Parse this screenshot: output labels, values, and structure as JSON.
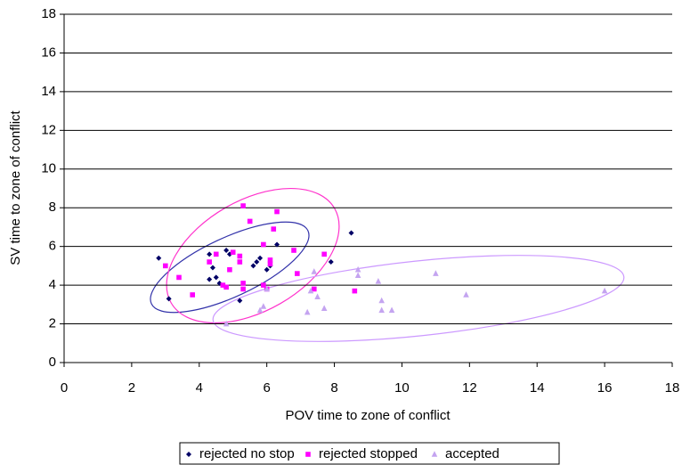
{
  "chart_data": {
    "type": "scatter",
    "x_label": "POV time to zone of conflict",
    "y_label": "SV time to zone of conflict",
    "xlim": [
      0,
      18
    ],
    "xticks": [
      0,
      2,
      4,
      6,
      8,
      10,
      12,
      14,
      16,
      18
    ],
    "ylim": [
      0,
      18
    ],
    "yticks": [
      0,
      2,
      4,
      6,
      8,
      10,
      12,
      14,
      16,
      18
    ],
    "grid": true,
    "legend": "bottom",
    "series": [
      {
        "name": "rejected no stop",
        "color": "#000066",
        "marker": "diamond",
        "x": [
          2.8,
          3.1,
          4.3,
          4.3,
          4.4,
          4.5,
          4.6,
          4.8,
          4.9,
          5.2,
          5.6,
          5.7,
          5.8,
          6.0,
          6.1,
          6.3,
          7.9,
          8.5
        ],
        "y": [
          5.4,
          3.3,
          5.6,
          4.3,
          4.9,
          4.4,
          4.1,
          5.8,
          5.6,
          3.2,
          5.0,
          5.2,
          5.4,
          4.8,
          5.0,
          6.1,
          5.2,
          6.7
        ]
      },
      {
        "name": "rejected stopped",
        "color": "#ff00ff",
        "marker": "square",
        "x": [
          3.0,
          3.4,
          3.8,
          4.3,
          4.5,
          4.7,
          4.8,
          4.9,
          5.0,
          5.2,
          5.2,
          5.3,
          5.3,
          5.3,
          5.5,
          5.9,
          5.9,
          6.0,
          6.1,
          6.1,
          6.2,
          6.3,
          6.8,
          6.9,
          7.4,
          7.7,
          8.6
        ],
        "y": [
          5.0,
          4.4,
          3.5,
          5.2,
          5.6,
          4.0,
          3.9,
          4.8,
          5.7,
          5.5,
          5.2,
          8.1,
          4.1,
          3.8,
          7.3,
          6.1,
          4.0,
          3.8,
          5.3,
          5.1,
          6.9,
          7.8,
          5.8,
          4.6,
          3.8,
          5.6,
          3.7
        ]
      },
      {
        "name": "accepted",
        "color": "#c4a4f0",
        "marker": "triangle",
        "x": [
          4.8,
          5.8,
          5.9,
          6.0,
          7.2,
          7.3,
          7.4,
          7.5,
          7.7,
          8.7,
          8.7,
          9.3,
          9.4,
          9.4,
          9.7,
          11.0,
          11.9,
          16.0
        ],
        "y": [
          2.0,
          2.7,
          2.9,
          3.8,
          2.6,
          3.7,
          4.7,
          3.4,
          2.8,
          4.5,
          4.8,
          4.2,
          3.2,
          2.7,
          2.7,
          4.6,
          3.5,
          3.7
        ]
      }
    ]
  }
}
